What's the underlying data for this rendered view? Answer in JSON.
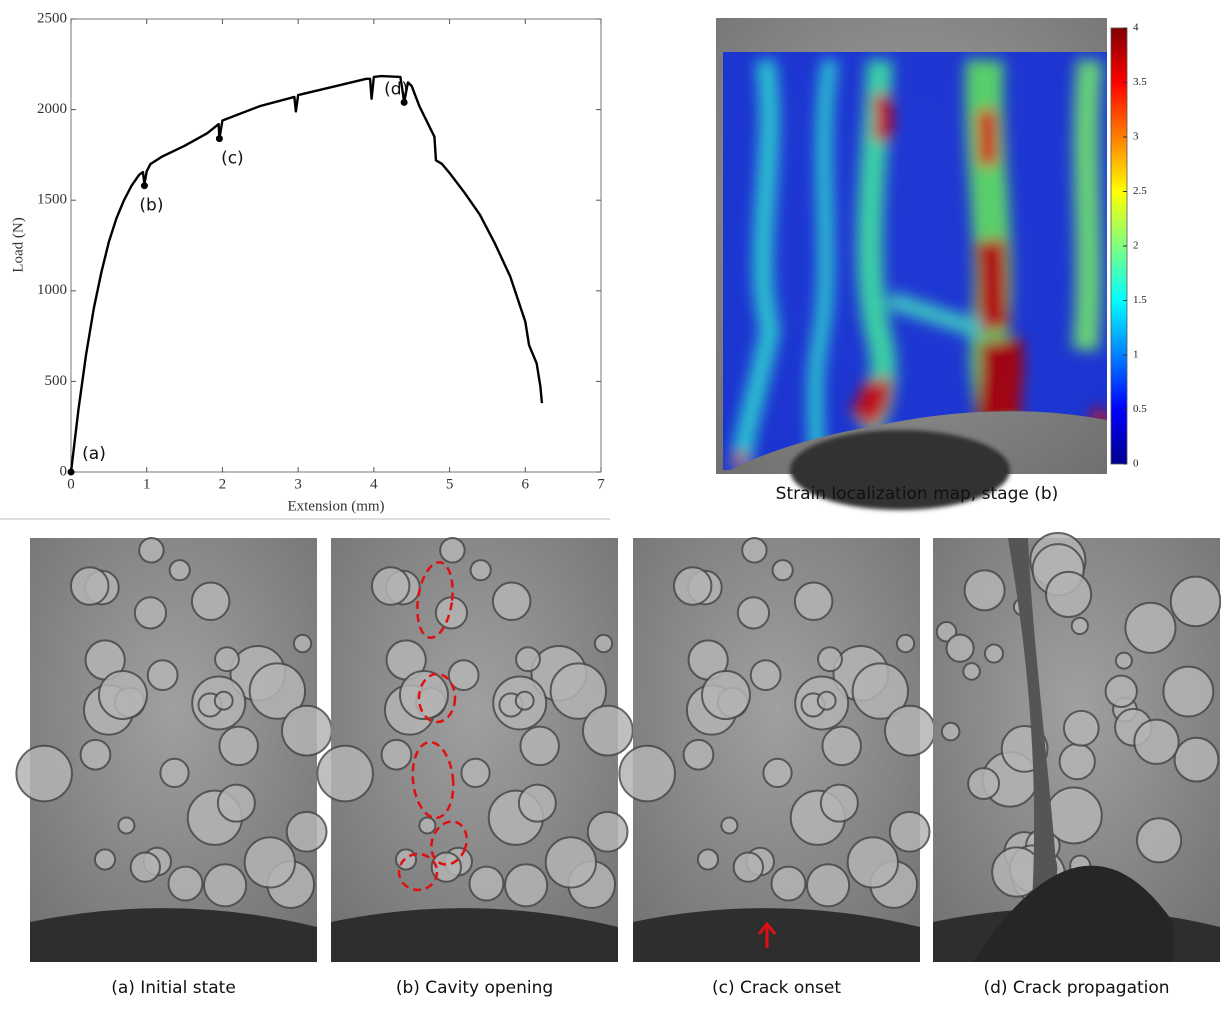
{
  "chart_data": [
    {
      "type": "line",
      "xlabel": "Extension (mm)",
      "ylabel": "Load (N)",
      "color": "#000000",
      "x": [
        0,
        0.1,
        0.2,
        0.3,
        0.4,
        0.5,
        0.6,
        0.7,
        0.8,
        0.9,
        0.95,
        0.97,
        1.0,
        1.05,
        1.2,
        1.5,
        1.8,
        1.95,
        1.96,
        2.0,
        2.5,
        2.95,
        2.97,
        3.0,
        3.5,
        3.9,
        3.95,
        3.97,
        4.0,
        4.1,
        4.35,
        4.38,
        4.4,
        4.45,
        4.5,
        4.6,
        4.8,
        4.82,
        4.9,
        5.0,
        5.2,
        5.4,
        5.6,
        5.8,
        6.0,
        6.05,
        6.15,
        6.2,
        6.22
      ],
      "values": [
        0,
        350,
        650,
        900,
        1100,
        1270,
        1400,
        1500,
        1580,
        1640,
        1655,
        1590,
        1660,
        1700,
        1740,
        1800,
        1870,
        1920,
        1840,
        1940,
        2020,
        2070,
        1990,
        2080,
        2130,
        2170,
        2170,
        2060,
        2180,
        2185,
        2180,
        2100,
        2040,
        2150,
        2130,
        2020,
        1850,
        1720,
        1700,
        1650,
        1540,
        1420,
        1260,
        1080,
        830,
        700,
        600,
        470,
        380
      ],
      "xlim": [
        0,
        7
      ],
      "xticks": [
        0,
        1,
        2,
        3,
        4,
        5,
        6,
        7
      ],
      "ylim": [
        0,
        2500
      ],
      "yticks": [
        0,
        500,
        1000,
        1500,
        2000,
        2500
      ],
      "annotations": [
        {
          "text": "(a)",
          "x": 0,
          "y": 0
        },
        {
          "text": "(b)",
          "x": 0.97,
          "y": 1580
        },
        {
          "text": "(c)",
          "x": 1.96,
          "y": 1840
        },
        {
          "text": "(d)",
          "x": 4.4,
          "y": 2040
        }
      ]
    },
    {
      "type": "colorbar",
      "title": "Strain localization map, stage (b)",
      "ylim": [
        0,
        4
      ],
      "yticks": [
        0,
        0.5,
        1,
        1.5,
        2,
        2.5,
        3,
        3.5,
        4
      ]
    }
  ],
  "panels": [
    "(a) Initial state",
    "(b) Cavity opening",
    "(c) Crack onset",
    "(d) Crack propagation"
  ]
}
